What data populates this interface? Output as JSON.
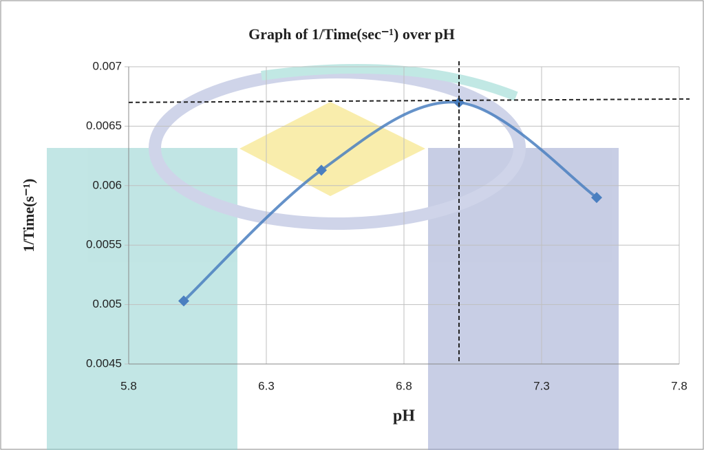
{
  "chart_data": {
    "type": "scatter-smooth",
    "title": "Graph of 1/Time(sec⁻¹) over pH",
    "x_label": "pH",
    "y_label": "1/Time(s⁻¹)",
    "x": [
      6.0,
      6.5,
      7.0,
      7.5
    ],
    "series": [
      {
        "color": "#4a7fc0",
        "values": [
          0.00503,
          0.00613,
          0.0067,
          0.0059
        ]
      }
    ],
    "xlim": [
      5.8,
      7.8
    ],
    "xticks": [
      5.8,
      6.3,
      6.8,
      7.3,
      7.8
    ],
    "ylim": [
      0.0045,
      0.007
    ],
    "yticks": [
      0.0045,
      0.005,
      0.0055,
      0.006,
      0.0065,
      0.007
    ],
    "grid": true,
    "reference_lines": {
      "x": 7.0,
      "y": 0.0067
    }
  }
}
